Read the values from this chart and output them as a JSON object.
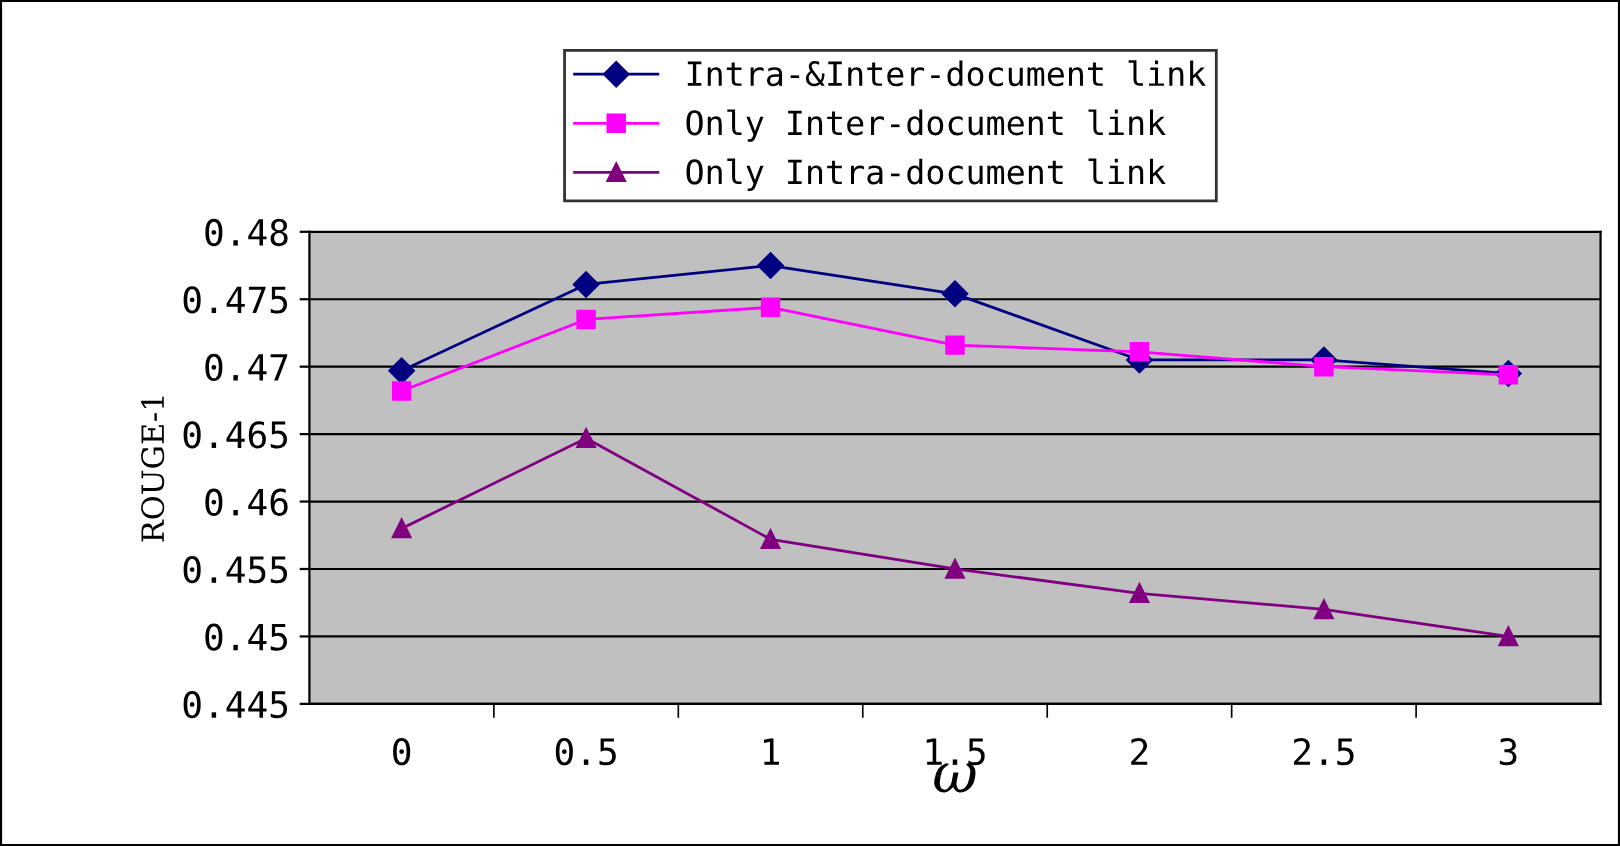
{
  "chart_data": {
    "type": "line",
    "xlabel": "ω",
    "ylabel": "ROUGE-1",
    "categories": [
      "0",
      "0.5",
      "1",
      "1.5",
      "2",
      "2.5",
      "3"
    ],
    "series": [
      {
        "name": "Intra-&Inter-document link",
        "color": "#000080",
        "marker": "diamond",
        "values": [
          0.4697,
          0.4761,
          0.4775,
          0.4754,
          0.4705,
          0.4705,
          0.4695
        ]
      },
      {
        "name": "Only Inter-document link",
        "color": "#ff00ff",
        "marker": "square",
        "values": [
          0.4682,
          0.4735,
          0.4744,
          0.4716,
          0.4711,
          0.47,
          0.4694
        ]
      },
      {
        "name": "Only Intra-document link",
        "color": "#800080",
        "marker": "triangle",
        "values": [
          0.458,
          0.4647,
          0.4572,
          0.455,
          0.4532,
          0.452,
          0.45
        ]
      }
    ],
    "ylim": [
      0.445,
      0.48
    ],
    "yticks": [
      0.445,
      0.45,
      0.455,
      0.46,
      0.465,
      0.47,
      0.475,
      0.48
    ],
    "grid": "y",
    "legend": "top"
  }
}
